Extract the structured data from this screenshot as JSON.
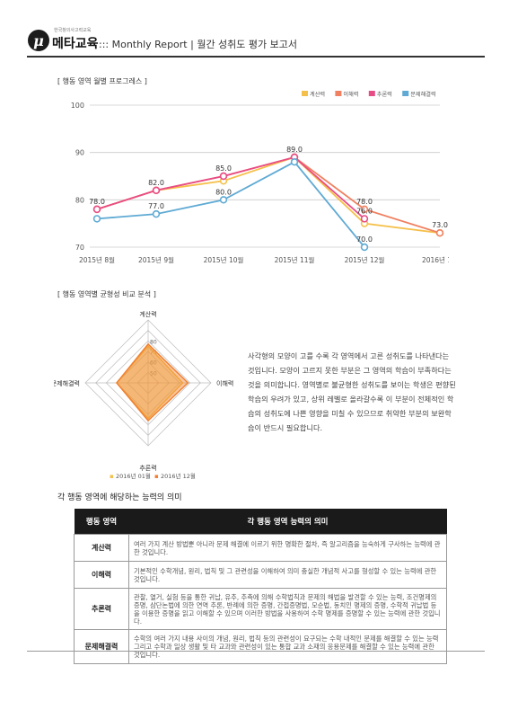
{
  "header": {
    "logo_small": "한국창의사고력교육",
    "logo_text": "메타교육",
    "title": "::: Monthly Report | 월간 성취도 평가 보고서"
  },
  "sections": {
    "progress": "[ 행동 영역 월별 프로그레스 ]",
    "balance": "[ 행동 영역별 균형성 비교 분석 ]",
    "meaning": "각 행동 영역에 해당하는 능력의 의미"
  },
  "colors": {
    "계산력": "#f5c04a",
    "이해력": "#f08060",
    "추론력": "#e84c86",
    "문제해결력": "#5faad4",
    "radar_jan": "#f5c04a",
    "radar_dec": "#f08030"
  },
  "chart_data": [
    {
      "type": "line",
      "x": [
        "2015년 8월",
        "2015년 9월",
        "2015년 10월",
        "2015년 11월",
        "2015년 12월",
        "2016년 1월"
      ],
      "ylim": [
        70,
        100
      ],
      "yticks": [
        "70",
        "80",
        "90",
        "100"
      ],
      "legend": [
        "계산력",
        "이해력",
        "추론력",
        "문제해결력"
      ],
      "legend_position": "top-right",
      "series": [
        {
          "name": "계산력",
          "values": [
            78.0,
            82.0,
            84.0,
            89.0,
            75.0,
            73.0
          ]
        },
        {
          "name": "이해력",
          "values": [
            78.0,
            82.0,
            85.0,
            89.0,
            78.0,
            73.0
          ]
        },
        {
          "name": "추론력",
          "values": [
            78.0,
            82.0,
            85.0,
            89.0,
            76.0,
            null
          ]
        },
        {
          "name": "문제해결력",
          "values": [
            76.0,
            77.0,
            80.0,
            88.0,
            70.0,
            null
          ]
        }
      ],
      "labels": [
        {
          "text": "78.0",
          "x": 0,
          "y": 78.0
        },
        {
          "text": "82.0",
          "x": 1,
          "y": 82.0
        },
        {
          "text": "77.0",
          "x": 1,
          "y": 77.0
        },
        {
          "text": "85.0",
          "x": 2,
          "y": 85.0
        },
        {
          "text": "80.0",
          "x": 2,
          "y": 80.0
        },
        {
          "text": "89.0",
          "x": 3,
          "y": 89.0
        },
        {
          "text": "78.0",
          "x": 4,
          "y": 78.0
        },
        {
          "text": "76.0",
          "x": 4,
          "y": 76.0
        },
        {
          "text": "70.0",
          "x": 4,
          "y": 70.0
        },
        {
          "text": "73.0",
          "x": 5,
          "y": 73.0
        }
      ]
    },
    {
      "type": "radar",
      "axes": [
        "계산력",
        "이해력",
        "추론력",
        "문제해결력"
      ],
      "rings": [
        "50",
        "60",
        "70",
        "80"
      ],
      "rmin": 40,
      "rmax": 100,
      "legend": [
        "2016년 01월",
        "2016년 12월"
      ],
      "legend_position": "bottom",
      "series": [
        {
          "name": "2016년 01월",
          "values": [
            75,
            73,
            74,
            70
          ]
        },
        {
          "name": "2016년 12월",
          "values": [
            77,
            78,
            76,
            70
          ]
        }
      ]
    }
  ],
  "analysis": "사각형의 모양이 고를 수록 각 영역에서 고른 성취도를 나타낸다는 것입니다. 모양이 고르지 못한 부분은 그 영역의 학습이 부족하다는 것을 의미합니다. 영역별로 불균형한 성취도를 보이는 학생은 편향된 학습의 우려가 있고, 상위 레벨로 올라갈수록 이 부분이 전체적인 학습의 성취도에 나쁜 영향을 미칠 수 있으므로 취약한 부분의 보완학습이 반드시 필요합니다.",
  "table": {
    "headers": [
      "행동 영역",
      "각 행동 영역 능력의 의미"
    ],
    "rows": [
      {
        "area": "계산력",
        "desc": "여러 가지 계산 방법뿐 아니라 문제 해결에 이르기 위한 명확한 절차, 즉 알고리즘을 능숙하게 구사하는 능력에 관한 것입니다."
      },
      {
        "area": "이해력",
        "desc": "기본적인 수학개념, 원리, 법칙 및 그 관련성을 이해하여 의미 충실한 개념적 사고를 형성할 수 있는 능력에 관한 것입니다."
      },
      {
        "area": "추론력",
        "desc": "관찰, 열거, 실험 등을 통한 귀납, 유추, 추측에 의해 수학법칙과 문제의 해법을 발견할 수 있는 능력, 조건명제의 증명, 삼단논법에 의한 연역 추론, 반례에 의한 증명, 간접증명법, 모순법, 동치인 명제의 증명, 수학적 귀납법 등을 이용한 증명을 읽고 이해할 수 있으며 이러한 방법을 사용하여 수학 명제를 증명할 수 있는 능력에 관한 것입니다."
      },
      {
        "area": "문제해결력",
        "desc": "수학의 여러 가지 내용 사이의 개념, 원리, 법칙 등의 관련성이 요구되는 수학 내적인 문제를 해결할 수 있는 능력 그리고 수학과 일상 생활 및 타 교과와 관련성이 있는 통합 교과 소재의 응용문제를 해결할 수 있는 능력에 관한 것입니다."
      }
    ]
  }
}
